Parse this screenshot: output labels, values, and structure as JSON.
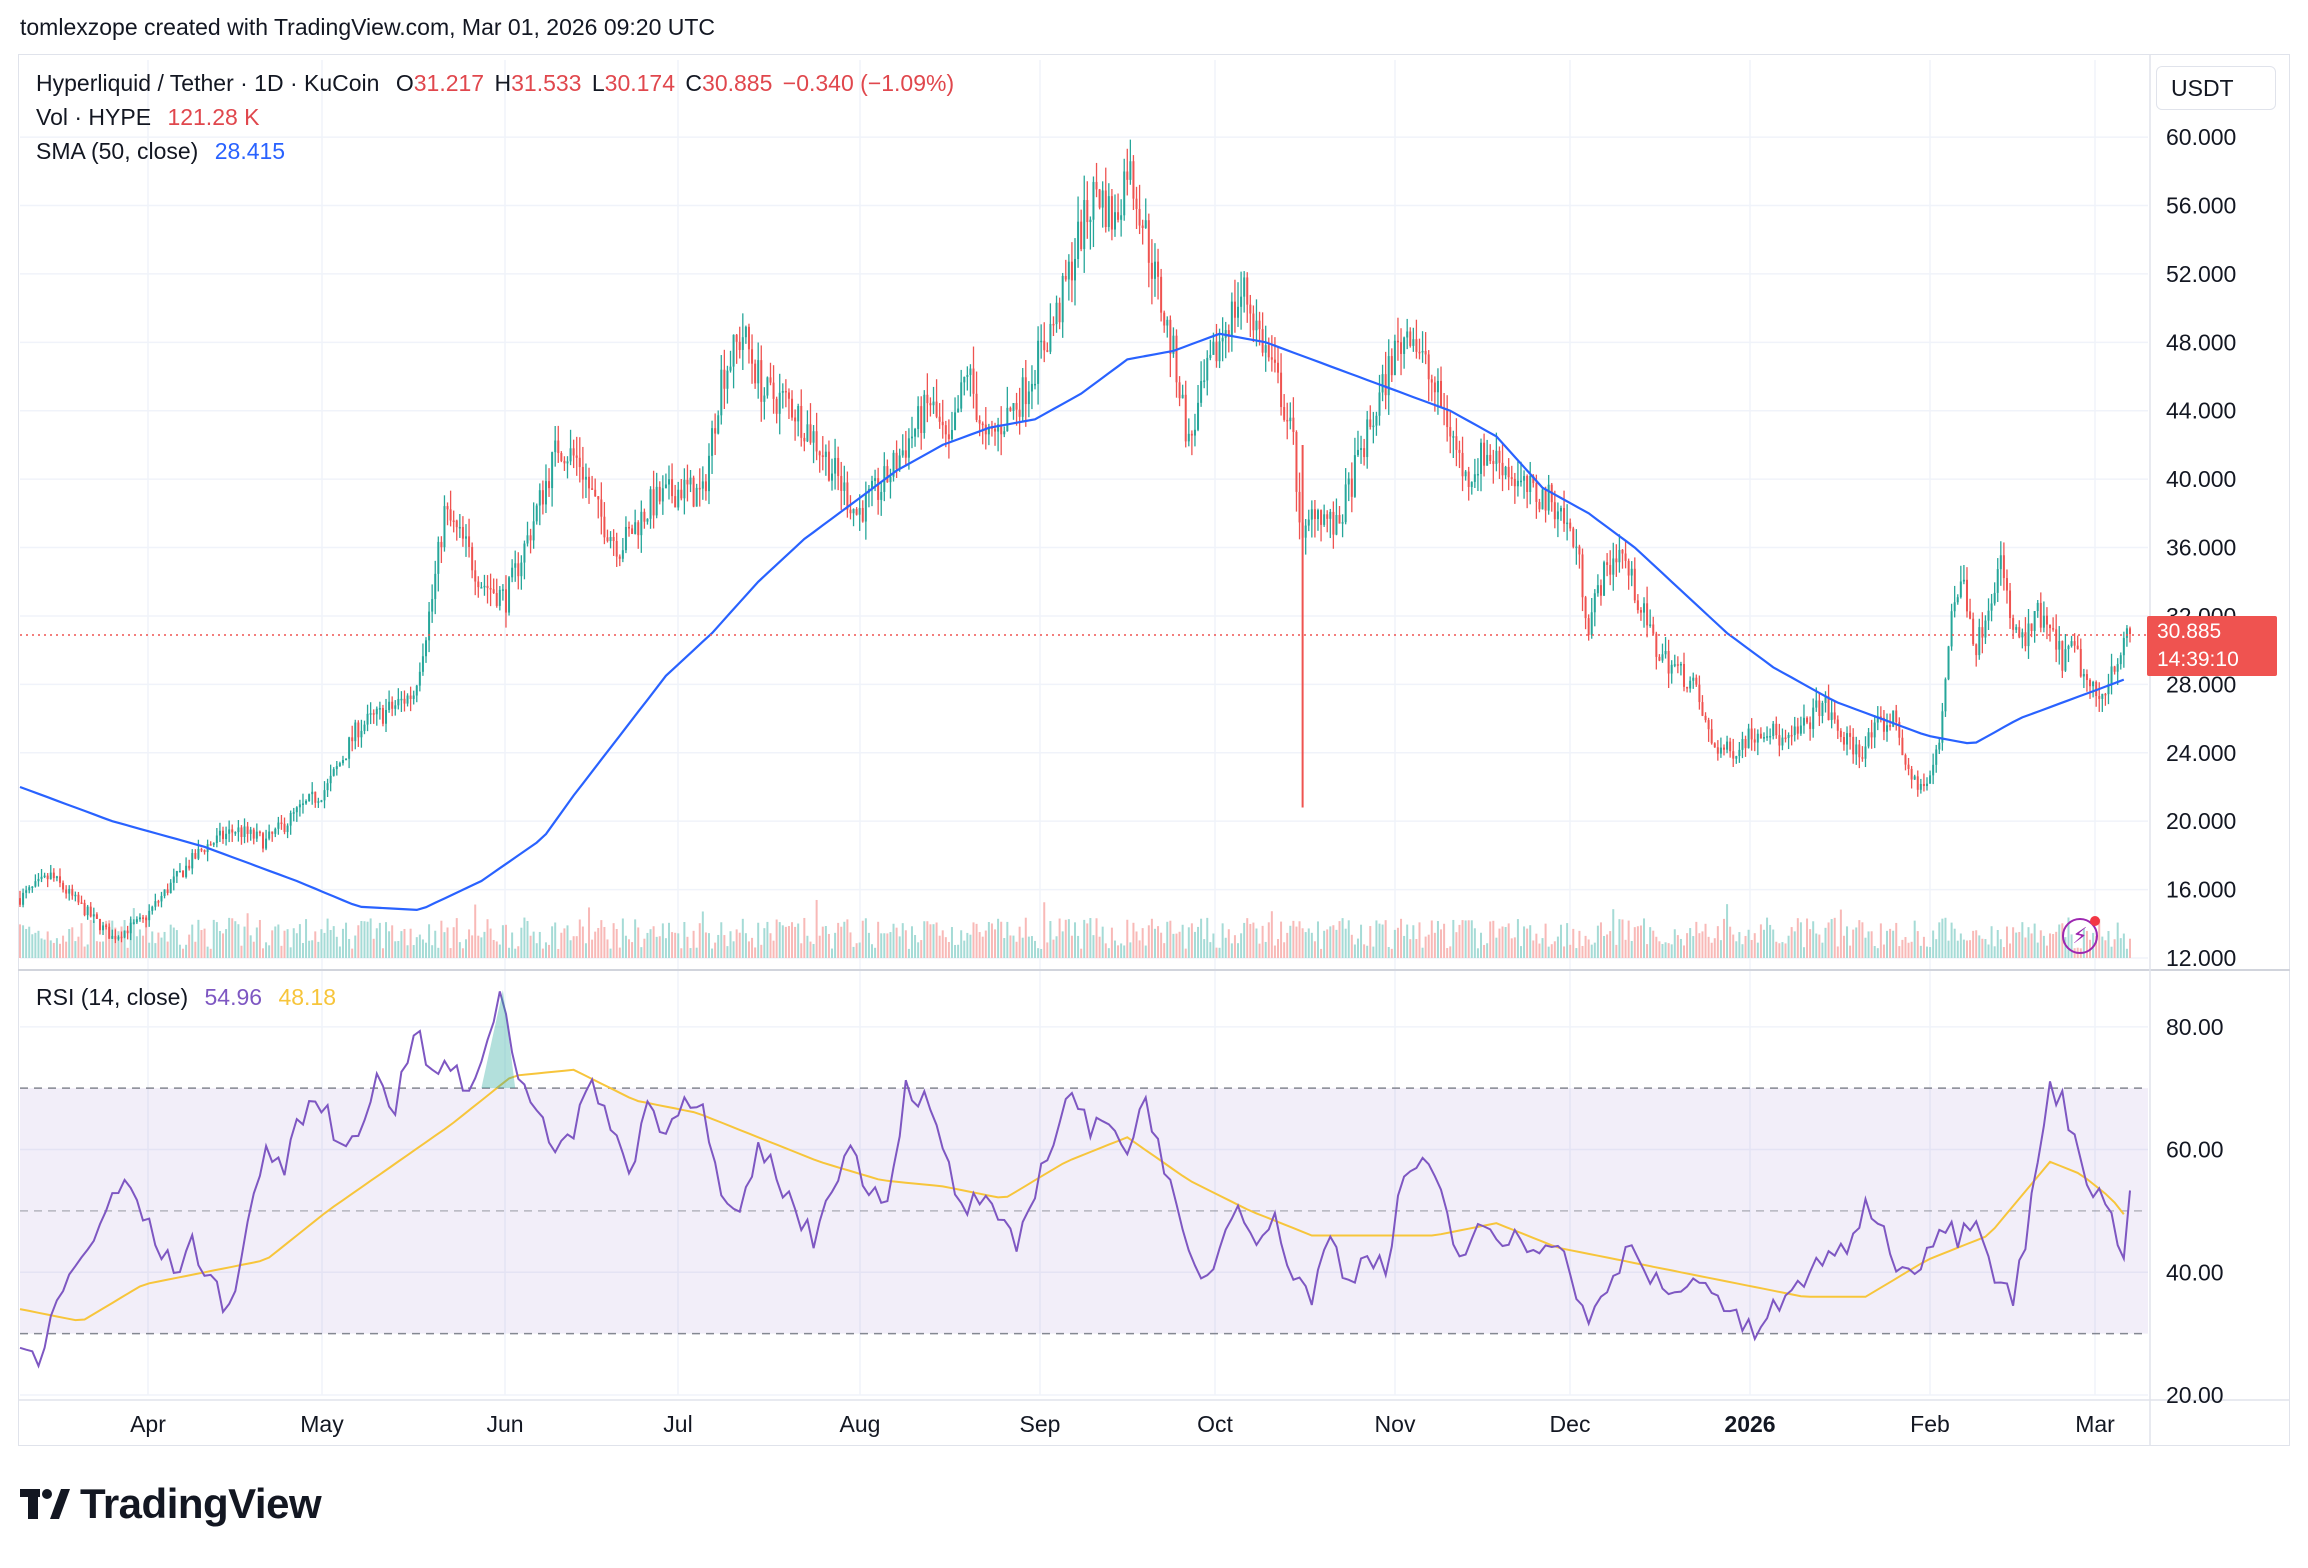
{
  "attribution": "tomlexzope created with TradingView.com, Mar 01, 2026 09:20 UTC",
  "legend": {
    "symbol": "Hyperliquid / Tether · 1D · KuCoin",
    "o_label": "O",
    "o": "31.217",
    "h_label": "H",
    "h": "31.533",
    "l_label": "L",
    "l": "30.174",
    "c_label": "C",
    "c": "30.885",
    "change": "−0.340 (−1.09%)",
    "vol_label": "Vol · HYPE",
    "vol": "121.28 K",
    "sma_label": "SMA (50, close)",
    "sma": "28.415",
    "rsi_label": "RSI (14, close)",
    "rsi": "54.96",
    "rsi_ma": "48.18"
  },
  "unit": "USDT",
  "price_tag": {
    "price": "30.885",
    "countdown": "14:39:10"
  },
  "brand": "TradingView",
  "colors": {
    "up": "#26a69a",
    "down": "#ef5350",
    "sma": "#2962ff",
    "rsi": "#7e57c2",
    "rsi_ma": "#f7c53b"
  },
  "chart_data": [
    {
      "type": "candlestick",
      "title": "Hyperliquid / Tether · 1D · KuCoin",
      "y_ticks": [
        "60.000",
        "56.000",
        "52.000",
        "48.000",
        "44.000",
        "40.000",
        "36.000",
        "32.000",
        "28.000",
        "24.000",
        "20.000",
        "16.000",
        "12.000"
      ],
      "ylim": [
        12,
        61
      ],
      "x_ticks": [
        "Apr",
        "May",
        "Jun",
        "Jul",
        "Aug",
        "Sep",
        "Oct",
        "Nov",
        "Dec",
        "2026",
        "Feb",
        "Mar"
      ],
      "last_close": 30.885,
      "close_trace": [
        [
          0,
          15.5
        ],
        [
          10,
          16.8
        ],
        [
          20,
          15.0
        ],
        [
          30,
          13.2
        ],
        [
          40,
          14.2
        ],
        [
          50,
          16.5
        ],
        [
          60,
          18.5
        ],
        [
          70,
          19.5
        ],
        [
          80,
          18.8
        ],
        [
          90,
          20.5
        ],
        [
          100,
          22
        ],
        [
          110,
          25.5
        ],
        [
          120,
          26.5
        ],
        [
          128,
          27.5
        ],
        [
          134,
          33
        ],
        [
          138,
          38
        ],
        [
          145,
          36
        ],
        [
          150,
          34
        ],
        [
          158,
          33
        ],
        [
          165,
          36.5
        ],
        [
          175,
          42
        ],
        [
          182,
          41
        ],
        [
          188,
          38
        ],
        [
          195,
          36
        ],
        [
          205,
          38.5
        ],
        [
          215,
          39.5
        ],
        [
          222,
          39
        ],
        [
          228,
          46
        ],
        [
          235,
          48.5
        ],
        [
          242,
          45
        ],
        [
          250,
          44.5
        ],
        [
          258,
          42.5
        ],
        [
          266,
          40
        ],
        [
          272,
          38
        ],
        [
          280,
          39.5
        ],
        [
          288,
          42
        ],
        [
          296,
          44.5
        ],
        [
          302,
          41.5
        ],
        [
          308,
          46.5
        ],
        [
          314,
          42
        ],
        [
          320,
          43.5
        ],
        [
          326,
          45
        ],
        [
          332,
          47.5
        ],
        [
          338,
          50
        ],
        [
          344,
          54
        ],
        [
          350,
          57
        ],
        [
          356,
          55
        ],
        [
          360,
          58.5
        ],
        [
          364,
          56
        ],
        [
          370,
          51
        ],
        [
          376,
          46.5
        ],
        [
          380,
          42
        ],
        [
          386,
          46
        ],
        [
          392,
          49
        ],
        [
          398,
          51
        ],
        [
          404,
          48
        ],
        [
          410,
          45
        ],
        [
          414,
          42
        ],
        [
          417,
          36
        ],
        [
          421,
          38.5
        ],
        [
          428,
          37
        ],
        [
          434,
          40.5
        ],
        [
          440,
          43.5
        ],
        [
          446,
          47
        ],
        [
          452,
          49
        ],
        [
          458,
          46
        ],
        [
          464,
          43.5
        ],
        [
          470,
          40
        ],
        [
          476,
          41.5
        ],
        [
          482,
          41
        ],
        [
          488,
          39.5
        ],
        [
          494,
          39
        ],
        [
          500,
          38.5
        ],
        [
          506,
          36
        ],
        [
          510,
          31.5
        ],
        [
          514,
          34
        ],
        [
          520,
          36
        ],
        [
          526,
          33
        ],
        [
          532,
          30
        ],
        [
          538,
          29
        ],
        [
          544,
          28
        ],
        [
          550,
          24.5
        ],
        [
          556,
          24
        ],
        [
          562,
          25
        ],
        [
          568,
          25.5
        ],
        [
          574,
          24.5
        ],
        [
          580,
          25.5
        ],
        [
          586,
          27
        ],
        [
          592,
          25
        ],
        [
          598,
          24
        ],
        [
          604,
          25.5
        ],
        [
          610,
          26
        ],
        [
          614,
          22.5
        ],
        [
          620,
          22
        ],
        [
          624,
          24.5
        ],
        [
          628,
          32.5
        ],
        [
          632,
          34
        ],
        [
          636,
          30
        ],
        [
          640,
          33
        ],
        [
          644,
          35
        ],
        [
          648,
          31
        ],
        [
          652,
          30.5
        ],
        [
          656,
          32
        ],
        [
          660,
          31
        ],
        [
          664,
          29.5
        ],
        [
          668,
          30
        ],
        [
          672,
          28
        ],
        [
          676,
          27
        ],
        [
          680,
          29
        ],
        [
          686,
          30.885
        ]
      ],
      "n_days": 687,
      "sma_trace": [
        [
          0,
          22
        ],
        [
          30,
          20
        ],
        [
          60,
          18.5
        ],
        [
          90,
          16.5
        ],
        [
          110,
          15
        ],
        [
          130,
          14.8
        ],
        [
          150,
          16.5
        ],
        [
          170,
          19
        ],
        [
          180,
          21.5
        ],
        [
          195,
          25
        ],
        [
          210,
          28.5
        ],
        [
          225,
          31
        ],
        [
          240,
          34
        ],
        [
          255,
          36.5
        ],
        [
          270,
          38.5
        ],
        [
          285,
          40.5
        ],
        [
          300,
          42
        ],
        [
          315,
          43
        ],
        [
          330,
          43.5
        ],
        [
          345,
          45
        ],
        [
          360,
          47
        ],
        [
          375,
          47.5
        ],
        [
          390,
          48.5
        ],
        [
          405,
          48
        ],
        [
          420,
          47
        ],
        [
          435,
          46
        ],
        [
          450,
          45
        ],
        [
          465,
          44
        ],
        [
          480,
          42.5
        ],
        [
          495,
          39.5
        ],
        [
          510,
          38
        ],
        [
          525,
          36
        ],
        [
          540,
          33.5
        ],
        [
          555,
          31
        ],
        [
          570,
          29
        ],
        [
          590,
          27
        ],
        [
          605,
          26
        ],
        [
          620,
          25
        ],
        [
          635,
          24.5
        ],
        [
          650,
          26
        ],
        [
          665,
          27
        ],
        [
          680,
          28
        ],
        [
          686,
          28.415
        ]
      ],
      "volume_ylim": [
        0,
        100
      ]
    },
    {
      "type": "line",
      "title": "RSI (14, close)",
      "y_ticks": [
        "80.00",
        "60.00",
        "40.00",
        "20.00"
      ],
      "ylim": [
        20,
        86
      ],
      "bands": {
        "upper": 70,
        "middle": 50,
        "lower": 30
      },
      "rsi_trace": [
        [
          0,
          28
        ],
        [
          6,
          24
        ],
        [
          12,
          36
        ],
        [
          20,
          42
        ],
        [
          28,
          50
        ],
        [
          35,
          55
        ],
        [
          42,
          47
        ],
        [
          50,
          40
        ],
        [
          56,
          45
        ],
        [
          62,
          38
        ],
        [
          68,
          34
        ],
        [
          74,
          48
        ],
        [
          80,
          60
        ],
        [
          86,
          57
        ],
        [
          92,
          66
        ],
        [
          98,
          68
        ],
        [
          104,
          60
        ],
        [
          110,
          64
        ],
        [
          116,
          71
        ],
        [
          122,
          67
        ],
        [
          128,
          80
        ],
        [
          134,
          72
        ],
        [
          140,
          74
        ],
        [
          146,
          68
        ],
        [
          152,
          79
        ],
        [
          157,
          86
        ],
        [
          162,
          71
        ],
        [
          168,
          68
        ],
        [
          174,
          60
        ],
        [
          180,
          62
        ],
        [
          186,
          72
        ],
        [
          192,
          64
        ],
        [
          198,
          56
        ],
        [
          204,
          68
        ],
        [
          210,
          62
        ],
        [
          216,
          70
        ],
        [
          222,
          66
        ],
        [
          228,
          52
        ],
        [
          234,
          48
        ],
        [
          240,
          60
        ],
        [
          246,
          56
        ],
        [
          252,
          50
        ],
        [
          258,
          45
        ],
        [
          264,
          55
        ],
        [
          270,
          60
        ],
        [
          276,
          54
        ],
        [
          282,
          52
        ],
        [
          288,
          70
        ],
        [
          294,
          68
        ],
        [
          300,
          60
        ],
        [
          306,
          50
        ],
        [
          312,
          52
        ],
        [
          318,
          48
        ],
        [
          324,
          44
        ],
        [
          330,
          54
        ],
        [
          336,
          62
        ],
        [
          342,
          70
        ],
        [
          348,
          62
        ],
        [
          354,
          66
        ],
        [
          360,
          60
        ],
        [
          366,
          68
        ],
        [
          372,
          58
        ],
        [
          378,
          45
        ],
        [
          384,
          38
        ],
        [
          390,
          44
        ],
        [
          396,
          52
        ],
        [
          402,
          46
        ],
        [
          408,
          48
        ],
        [
          414,
          40
        ],
        [
          420,
          36
        ],
        [
          426,
          46
        ],
        [
          432,
          38
        ],
        [
          438,
          44
        ],
        [
          444,
          40
        ],
        [
          450,
          56
        ],
        [
          456,
          58
        ],
        [
          462,
          52
        ],
        [
          468,
          42
        ],
        [
          474,
          48
        ],
        [
          480,
          44
        ],
        [
          486,
          46
        ],
        [
          492,
          44
        ],
        [
          498,
          46
        ],
        [
          504,
          40
        ],
        [
          510,
          32
        ],
        [
          516,
          36
        ],
        [
          522,
          44
        ],
        [
          528,
          40
        ],
        [
          534,
          38
        ],
        [
          540,
          36
        ],
        [
          546,
          40
        ],
        [
          552,
          36
        ],
        [
          558,
          32
        ],
        [
          564,
          30
        ],
        [
          570,
          34
        ],
        [
          576,
          36
        ],
        [
          582,
          40
        ],
        [
          588,
          44
        ],
        [
          594,
          42
        ],
        [
          600,
          52
        ],
        [
          606,
          46
        ],
        [
          612,
          40
        ],
        [
          618,
          42
        ],
        [
          624,
          48
        ],
        [
          630,
          46
        ],
        [
          636,
          50
        ],
        [
          642,
          40
        ],
        [
          648,
          36
        ],
        [
          652,
          45
        ],
        [
          656,
          58
        ],
        [
          660,
          70
        ],
        [
          664,
          68
        ],
        [
          668,
          62
        ],
        [
          672,
          56
        ],
        [
          676,
          52
        ],
        [
          680,
          48
        ],
        [
          684,
          44
        ],
        [
          686,
          54.96
        ]
      ],
      "rsi_ma_trace": [
        [
          0,
          34
        ],
        [
          20,
          32
        ],
        [
          40,
          38
        ],
        [
          60,
          40
        ],
        [
          80,
          42
        ],
        [
          100,
          50
        ],
        [
          120,
          57
        ],
        [
          140,
          64
        ],
        [
          160,
          72
        ],
        [
          180,
          73
        ],
        [
          200,
          68
        ],
        [
          220,
          66
        ],
        [
          240,
          62
        ],
        [
          260,
          58
        ],
        [
          280,
          55
        ],
        [
          300,
          54
        ],
        [
          320,
          52
        ],
        [
          340,
          58
        ],
        [
          360,
          62
        ],
        [
          380,
          55
        ],
        [
          400,
          50
        ],
        [
          420,
          46
        ],
        [
          440,
          46
        ],
        [
          460,
          46
        ],
        [
          480,
          48
        ],
        [
          500,
          44
        ],
        [
          520,
          42
        ],
        [
          540,
          40
        ],
        [
          560,
          38
        ],
        [
          580,
          36
        ],
        [
          600,
          36
        ],
        [
          620,
          42
        ],
        [
          640,
          46
        ],
        [
          650,
          52
        ],
        [
          660,
          58
        ],
        [
          670,
          56
        ],
        [
          680,
          52
        ],
        [
          686,
          48.18
        ]
      ]
    }
  ]
}
